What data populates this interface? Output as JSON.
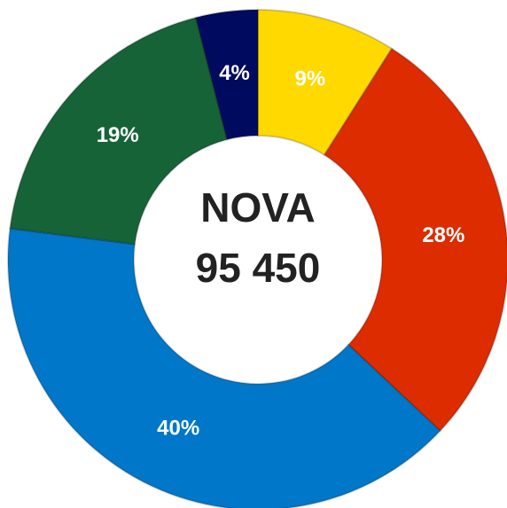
{
  "chart_data": {
    "type": "donut",
    "title": "NOVA",
    "subtitle": "95 450",
    "categories": [
      null,
      null,
      null,
      null,
      null
    ],
    "values": [
      9,
      28,
      40,
      19,
      4
    ],
    "value_labels": [
      "9%",
      "28%",
      "40%",
      "19%",
      "4%"
    ],
    "colors": [
      "#ffd900",
      "#dd2c00",
      "#0077c8",
      "#176338",
      "#000a5e"
    ]
  }
}
